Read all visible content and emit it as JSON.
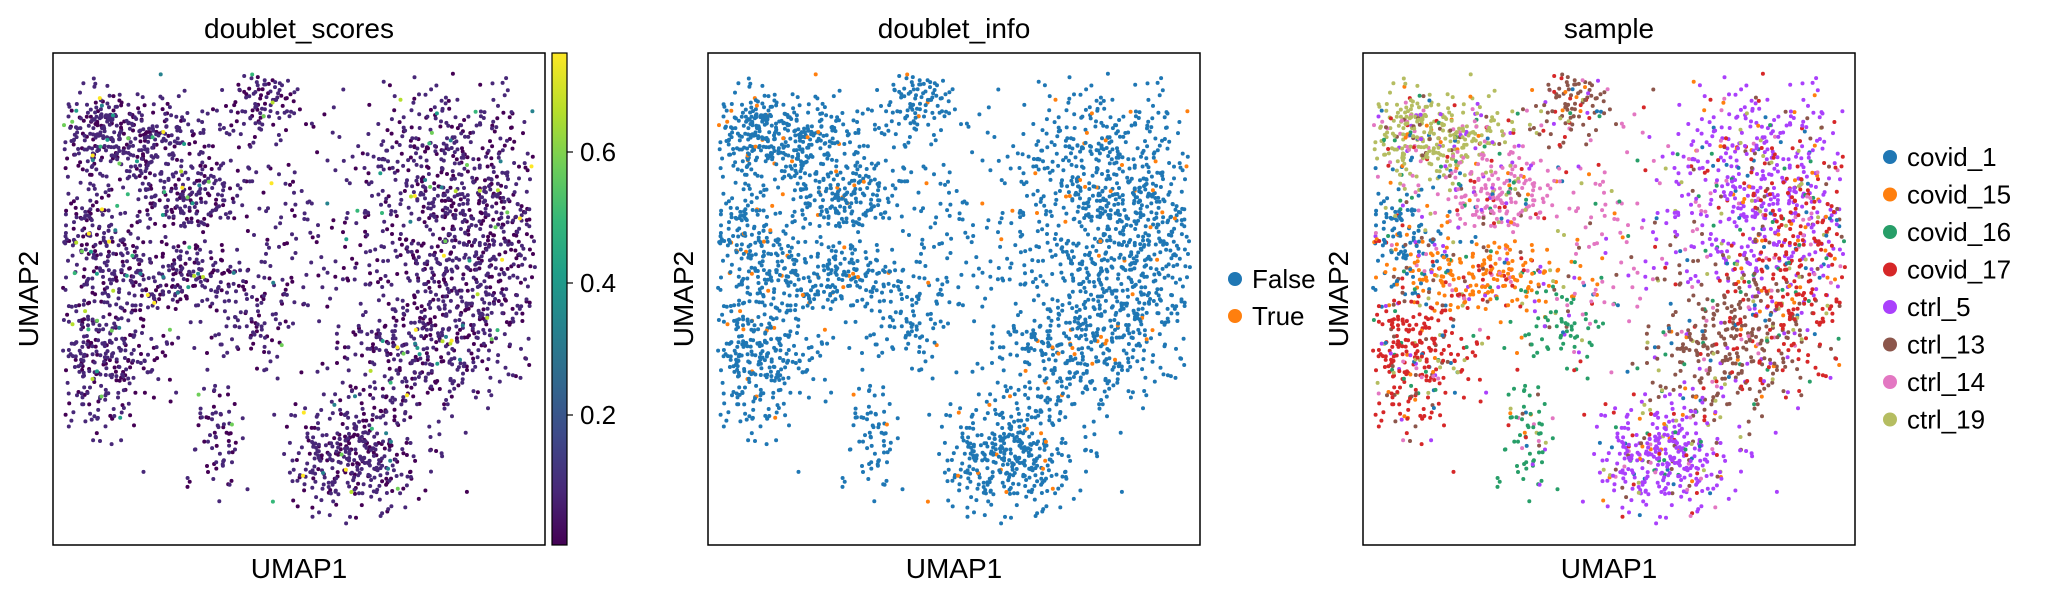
{
  "chart_data": [
    {
      "type": "scatter",
      "title": "doublet_scores",
      "xlabel": "UMAP1",
      "ylabel": "UMAP2",
      "colorbar": {
        "colormap": "viridis",
        "range": [
          0.0,
          0.75
        ],
        "ticks": [
          0.2,
          0.4,
          0.6
        ],
        "tick_labels": [
          "0.2",
          "0.4",
          "0.6"
        ]
      },
      "grid": false
    },
    {
      "type": "scatter",
      "title": "doublet_info",
      "xlabel": "UMAP1",
      "ylabel": "UMAP2",
      "legend_position": "right",
      "series": [
        {
          "name": "False",
          "color": "#1f77b4"
        },
        {
          "name": "True",
          "color": "#ff7f0e"
        }
      ],
      "grid": false
    },
    {
      "type": "scatter",
      "title": "sample",
      "xlabel": "UMAP1",
      "ylabel": "UMAP2",
      "legend_position": "right",
      "series": [
        {
          "name": "covid_1",
          "color": "#1f77b4"
        },
        {
          "name": "covid_15",
          "color": "#ff7f0e"
        },
        {
          "name": "covid_16",
          "color": "#279e68"
        },
        {
          "name": "covid_17",
          "color": "#d62728"
        },
        {
          "name": "ctrl_5",
          "color": "#aa40fc"
        },
        {
          "name": "ctrl_13",
          "color": "#8c564b"
        },
        {
          "name": "ctrl_14",
          "color": "#e377c2"
        },
        {
          "name": "ctrl_19",
          "color": "#b5bd61"
        }
      ],
      "grid": false
    }
  ],
  "viridis": [
    "#440154",
    "#482878",
    "#3e4989",
    "#31688e",
    "#26828e",
    "#1f9e89",
    "#35b779",
    "#6ece58",
    "#b5de2b",
    "#fde725"
  ]
}
